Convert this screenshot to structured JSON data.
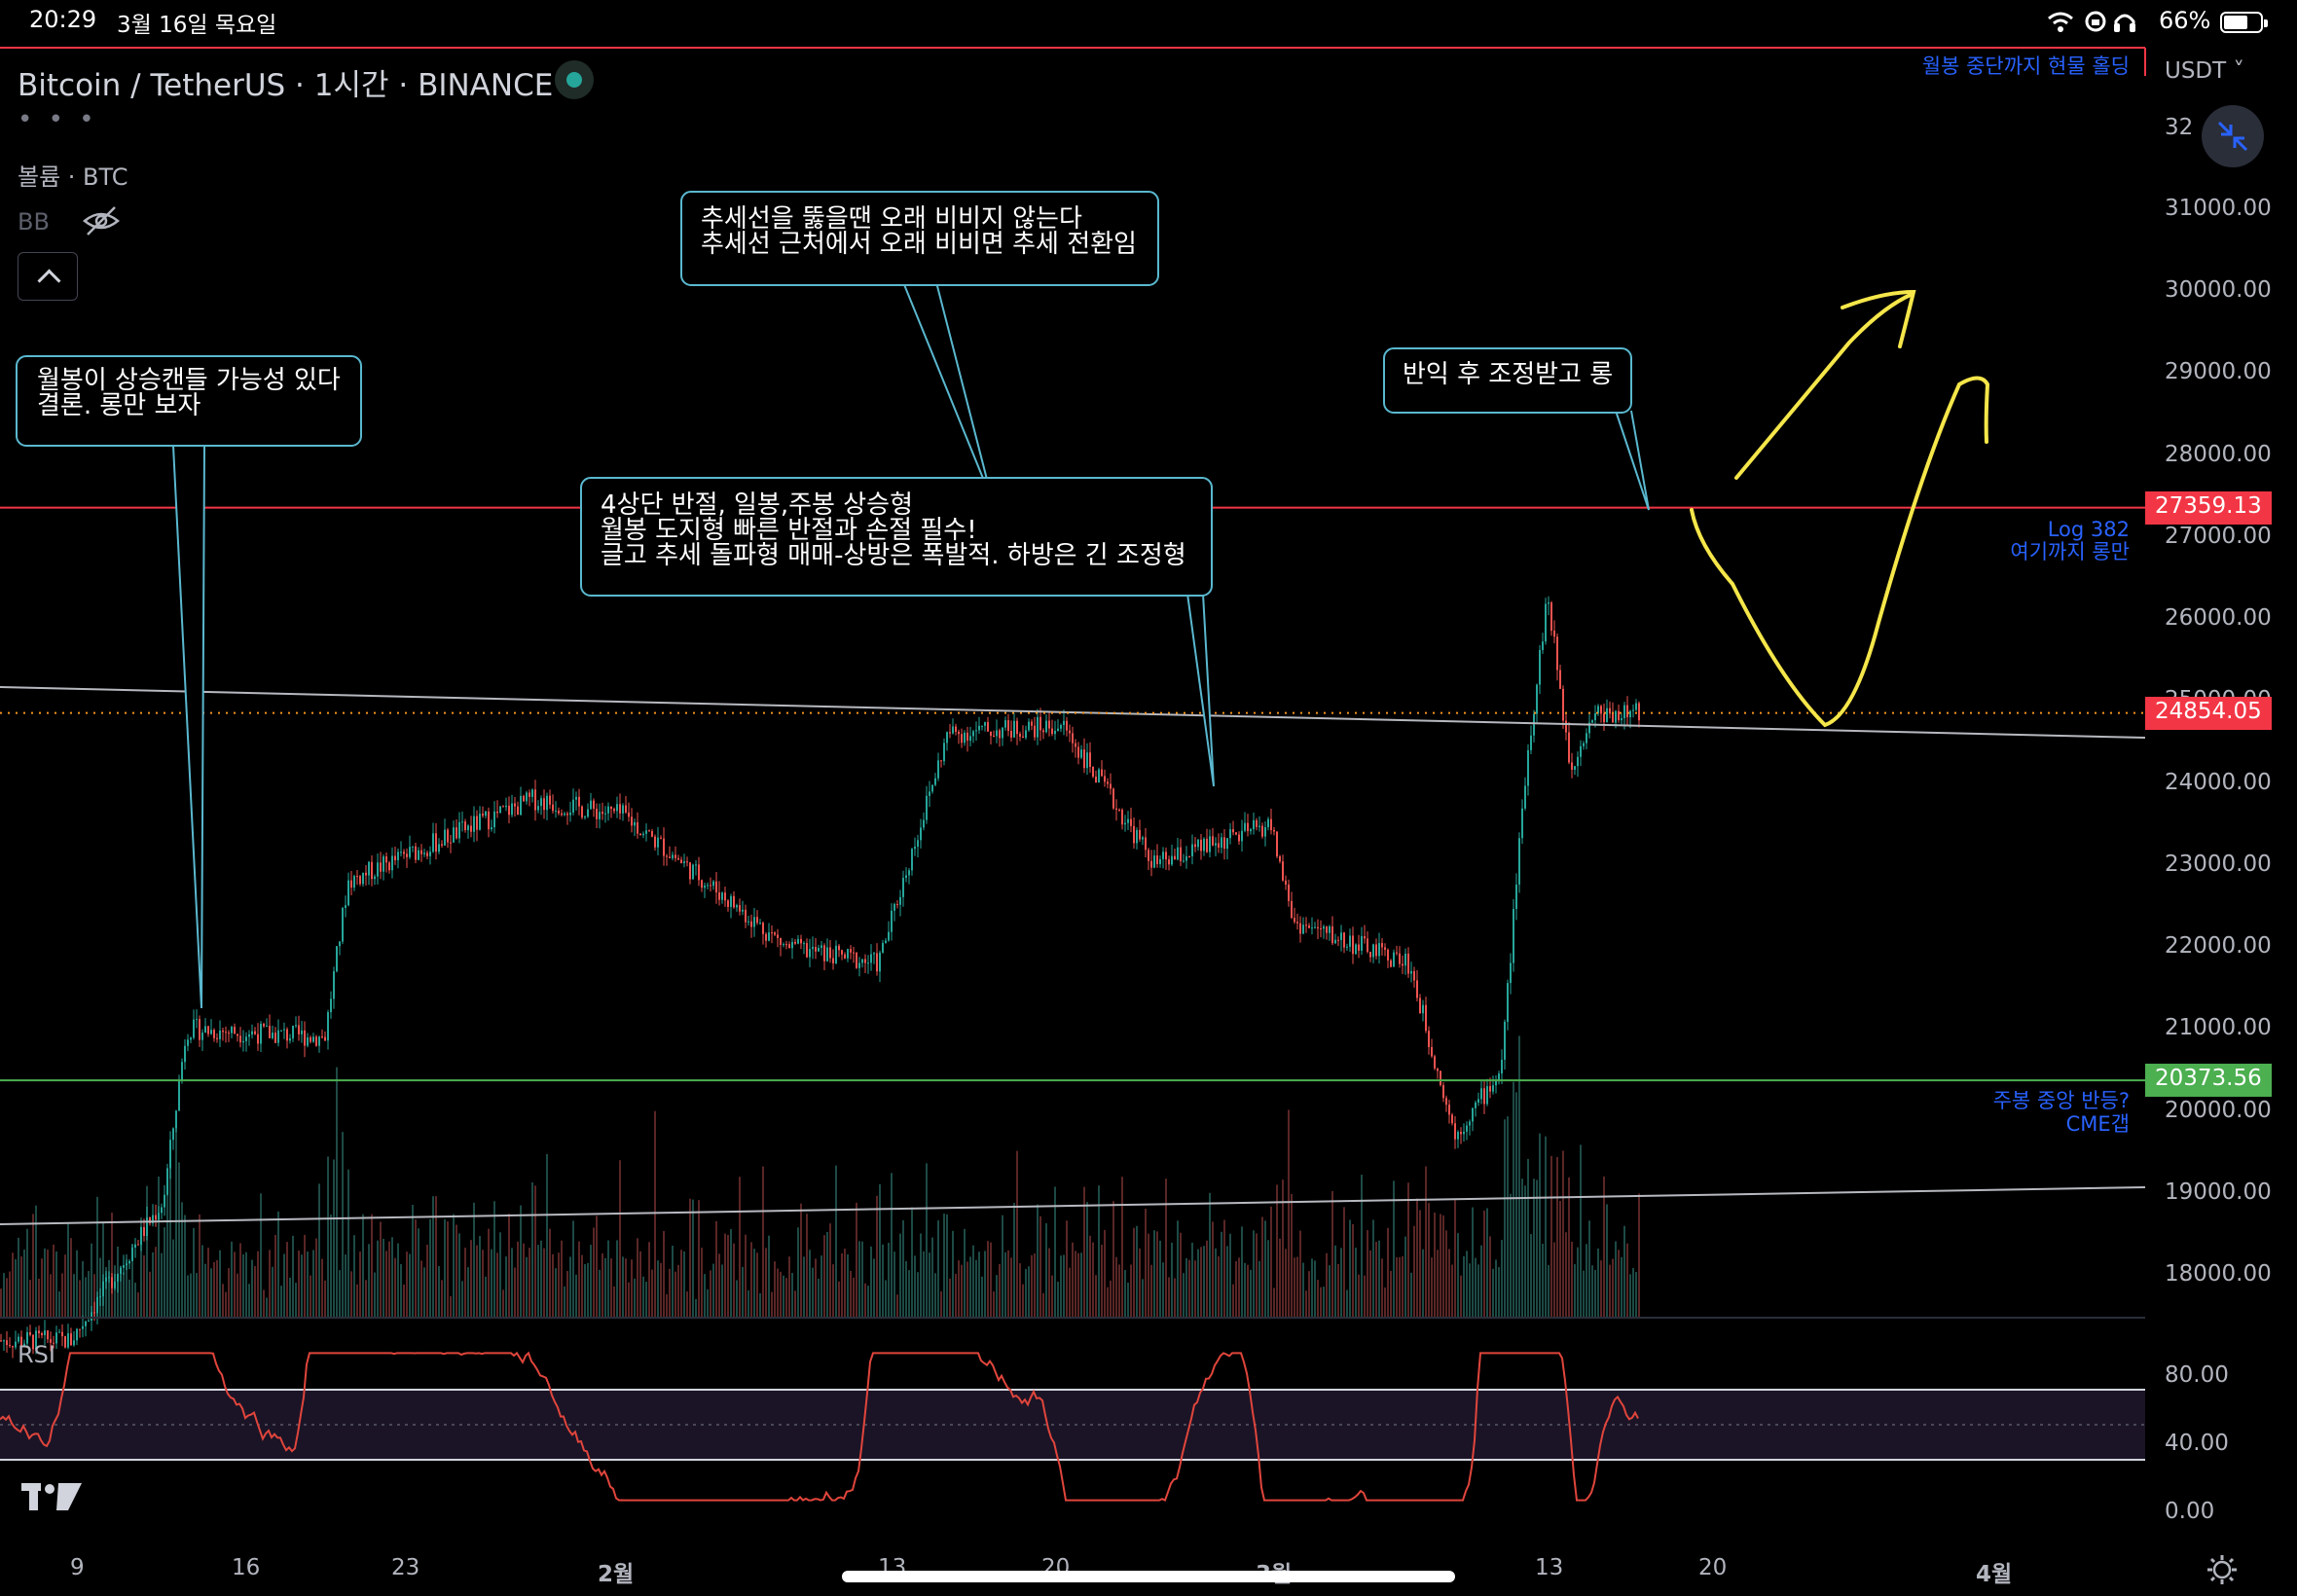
{
  "status_bar": {
    "time": "20:29",
    "date": "3월 16일 목요일",
    "battery": "66%",
    "battery_level": 0.66
  },
  "header": {
    "symbol_title": "Bitcoin / TetherUS · 1시간 · BINANCE",
    "more_dots": "• • •",
    "volume_label": "볼륨 · BTC",
    "bb_label": "BB",
    "currency": "USDT",
    "rsi_label": "RSI"
  },
  "price_tags": {
    "resistance": "27359.13",
    "current": "24854.05",
    "support": "20373.56"
  },
  "right_annotations": {
    "top": "월봉 중단까지 현물 홀딩",
    "log_line1": "Log 382",
    "log_line2": "여기까지 롱만",
    "support_line1": "주봉 중앙 반등?",
    "support_line2": "CME갭"
  },
  "callouts": {
    "c1": "월봉이 상승캔들 가능성 있다\n결론. 롱만 보자",
    "c2": "추세선을 뚫을땐 오래 비비지 않는다\n추세선 근처에서 오래 비비면 추세 전환임",
    "c3": "4상단 반절, 일봉,주봉 상승형\n월봉 도지형 빠른 반절과 손절 필수!\n글고 추세 돌파형 매매-상방은 폭발적. 하방은 긴 조정형",
    "c4": "반익 후 조정받고 롱"
  },
  "colors": {
    "up": "#26a69a",
    "down": "#ef5350",
    "resistance": "#f23645",
    "support": "#4caf50",
    "annotation_blue": "#2962ff",
    "callout_border": "#5ab8cf",
    "rsi_line": "#e0453c",
    "drawing_yellow": "#f5e64a"
  },
  "chart_data": {
    "type": "candlestick",
    "symbol": "Bitcoin / TetherUS",
    "interval": "1시간",
    "exchange": "BINANCE",
    "price_axis": {
      "ticks": [
        "31000.00",
        "30000.00",
        "29000.00",
        "28000.00",
        "27000.00",
        "26000.00",
        "25000.00",
        "24000.00",
        "23000.00",
        "22000.00",
        "21000.00",
        "20000.00",
        "19000.00",
        "18000.00"
      ],
      "partial_top": "32000.00",
      "range": [
        17500,
        32700
      ]
    },
    "rsi_axis": {
      "ticks": [
        "80.00",
        "40.00",
        "0.00"
      ],
      "bands": [
        30,
        70
      ]
    },
    "x_axis": {
      "ticks": [
        "9",
        "16",
        "23",
        "2월",
        "13",
        "20",
        "3월",
        "13",
        "20",
        "4월"
      ]
    },
    "horizontal_levels": [
      {
        "price": 27359.13,
        "note": "Log 382 여기까지 롱만"
      },
      {
        "price": 24854.05,
        "note": "current"
      },
      {
        "price": 20373.56,
        "note": "주봉 중앙 반등? CME갭"
      }
    ],
    "price_path_approx": [
      {
        "date": "1/9",
        "price": 17200
      },
      {
        "date": "1/13",
        "price": 18900
      },
      {
        "date": "1/14",
        "price": 21000
      },
      {
        "date": "1/20",
        "price": 20900
      },
      {
        "date": "1/21",
        "price": 22800
      },
      {
        "date": "1/29",
        "price": 23800
      },
      {
        "date": "2/2",
        "price": 23600
      },
      {
        "date": "2/9",
        "price": 22000
      },
      {
        "date": "2/13",
        "price": 21800
      },
      {
        "date": "2/16",
        "price": 24600
      },
      {
        "date": "2/21",
        "price": 24700
      },
      {
        "date": "2/25",
        "price": 23000
      },
      {
        "date": "3/2",
        "price": 23500
      },
      {
        "date": "3/3",
        "price": 22300
      },
      {
        "date": "3/8",
        "price": 21800
      },
      {
        "date": "3/10",
        "price": 19700
      },
      {
        "date": "3/12",
        "price": 20500
      },
      {
        "date": "3/13",
        "price": 24000
      },
      {
        "date": "3/14",
        "price": 26300
      },
      {
        "date": "3/15",
        "price": 24200
      },
      {
        "date": "3/16",
        "price": 24854
      }
    ]
  }
}
